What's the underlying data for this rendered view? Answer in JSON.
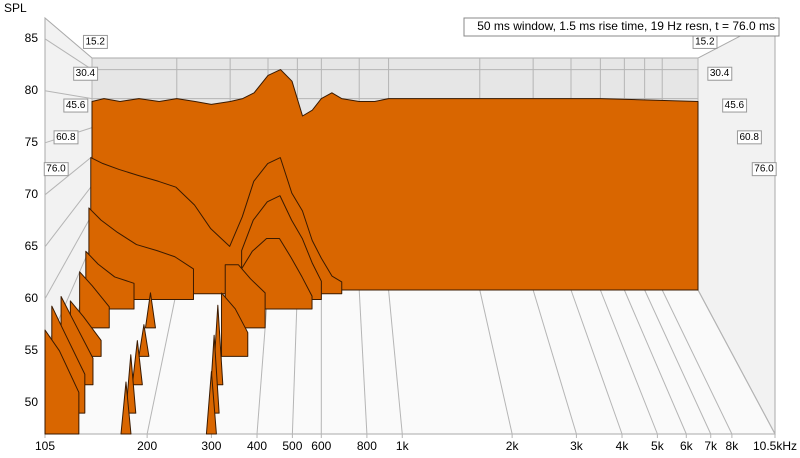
{
  "chart_data": {
    "type": "waterfall",
    "y_label": "SPL",
    "annotation": "50 ms window, 1.5 ms rise time,  19 Hz resn, t = 76.0 ms",
    "log_x": true,
    "grid": true,
    "color": "#d96600",
    "xlim": [
      105,
      10500
    ],
    "xticks": [
      105,
      200,
      300,
      400,
      500,
      600,
      800,
      {
        "value": 1000,
        "label": "1k"
      },
      {
        "value": 2000,
        "label": "2k"
      },
      {
        "value": 3000,
        "label": "3k"
      },
      {
        "value": 4000,
        "label": "4k"
      },
      {
        "value": 5000,
        "label": "5k"
      },
      {
        "value": 6000,
        "label": "6k"
      },
      {
        "value": 7000,
        "label": "7k"
      },
      {
        "value": 8000,
        "label": "8k"
      },
      {
        "value": 10500,
        "label": "10.5kHz"
      }
    ],
    "ylim": [
      47,
      87
    ],
    "yticks": [
      50,
      55,
      60,
      65,
      70,
      75,
      80,
      85
    ],
    "zlim": [
      0,
      76
    ],
    "zticks": [
      15.2,
      30.4,
      45.6,
      60.8,
      {
        "value": 76,
        "label": "76.0"
      }
    ],
    "x": [
      105,
      115,
      130,
      150,
      175,
      200,
      230,
      260,
      300,
      330,
      360,
      400,
      440,
      480,
      520,
      560,
      600,
      650,
      700,
      800,
      900,
      1000,
      1500,
      2000,
      3000,
      5000,
      10500
    ],
    "series": [
      {
        "z": 0,
        "values": [
          79.5,
          80,
          79.5,
          80,
          79.5,
          80,
          79.5,
          79,
          79.5,
          80,
          81,
          84,
          85,
          83,
          77,
          78,
          80,
          81,
          80,
          79.5,
          79.5,
          80,
          80,
          80,
          80,
          80,
          79.5
        ]
      },
      {
        "z": 2,
        "values": [
          70,
          69,
          68,
          67,
          66,
          65,
          62,
          58,
          55,
          60,
          66,
          69,
          70,
          64,
          61,
          56,
          53,
          50,
          49,
          null,
          null,
          null,
          null,
          null,
          null,
          null,
          null
        ]
      },
      {
        "z": 5,
        "values": [
          62,
          60,
          58,
          56,
          55,
          54,
          52,
          null,
          null,
          55,
          60,
          63,
          64,
          60,
          57,
          53,
          50,
          null,
          null,
          null,
          null,
          null,
          null,
          null,
          null,
          null,
          null
        ]
      },
      {
        "z": 10,
        "values": [
          56,
          54,
          52,
          51,
          null,
          null,
          null,
          null,
          50,
          53,
          56,
          58,
          58,
          55,
          52,
          49,
          null,
          null,
          null,
          null,
          null,
          null,
          null,
          null,
          null,
          null,
          null
        ]
      },
      {
        "z": 20,
        "values": [
          55,
          53,
          50,
          null,
          52,
          null,
          null,
          null,
          56,
          56,
          54,
          52,
          null,
          null,
          null,
          null,
          null,
          null,
          null,
          null,
          null,
          null,
          null,
          null,
          null,
          null,
          null
        ]
      },
      {
        "z": 35,
        "values": [
          54,
          52,
          49,
          null,
          51,
          null,
          null,
          null,
          55,
          53,
          50,
          null,
          null,
          null,
          null,
          null,
          null,
          null,
          null,
          null,
          null,
          null,
          null,
          null,
          null,
          null,
          null
        ]
      },
      {
        "z": 50,
        "values": [
          57,
          54,
          50,
          null,
          52,
          null,
          null,
          null,
          56,
          null,
          null,
          null,
          null,
          null,
          null,
          null,
          null,
          null,
          null,
          null,
          null,
          null,
          null,
          null,
          null,
          null,
          null
        ]
      },
      {
        "z": 65,
        "values": [
          58,
          55,
          51,
          null,
          53,
          null,
          null,
          null,
          55,
          null,
          null,
          null,
          null,
          null,
          null,
          null,
          null,
          null,
          null,
          null,
          null,
          null,
          null,
          null,
          null,
          null,
          null
        ]
      },
      {
        "z": 76,
        "values": [
          57,
          55,
          51,
          null,
          52,
          null,
          null,
          null,
          53,
          null,
          null,
          null,
          null,
          null,
          null,
          null,
          null,
          null,
          null,
          null,
          null,
          null,
          null,
          null,
          null,
          null,
          null
        ]
      }
    ]
  }
}
